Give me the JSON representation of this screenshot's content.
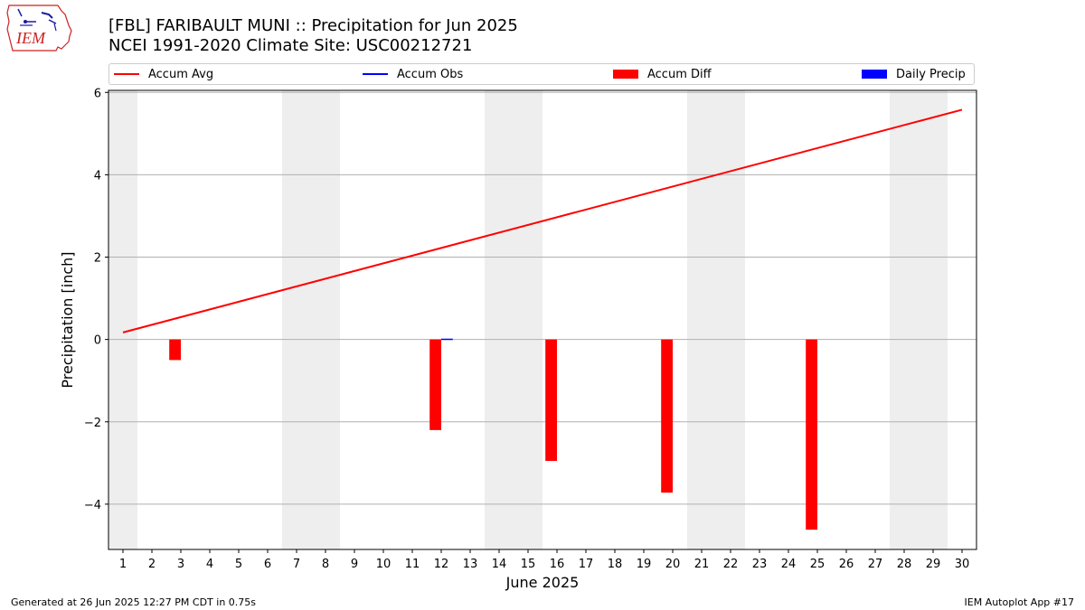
{
  "logo": {
    "text": "IEM"
  },
  "title_line1": "[FBL] FARIBAULT MUNI :: Precipitation for Jun 2025",
  "title_line2": "NCEI 1991-2020 Climate Site: USC00212721",
  "legend": [
    {
      "label": "Accum Avg",
      "kind": "line",
      "color": "#ff0000"
    },
    {
      "label": "Accum Obs",
      "kind": "line",
      "color": "#0000ff"
    },
    {
      "label": "Accum Diff",
      "kind": "box",
      "color": "#ff0000"
    },
    {
      "label": "Daily Precip",
      "kind": "box",
      "color": "#0000ff"
    }
  ],
  "footer_left": "Generated at 26 Jun 2025 12:27 PM CDT in 0.75s",
  "footer_right": "IEM Autoplot App #17",
  "chart_data": {
    "type": "bar",
    "xlabel": "June 2025",
    "ylabel": "Precipitation [inch]",
    "ylim": [
      -5.1,
      6.05
    ],
    "yticks": [
      -4,
      -2,
      0,
      2,
      4,
      6
    ],
    "ytick_labels": [
      "−4",
      "−2",
      "0",
      "2",
      "4",
      "6"
    ],
    "xlim": [
      0.5,
      30.5
    ],
    "days": [
      "1",
      "2",
      "3",
      "4",
      "5",
      "6",
      "7",
      "8",
      "9",
      "10",
      "11",
      "12",
      "13",
      "14",
      "15",
      "16",
      "17",
      "18",
      "19",
      "20",
      "21",
      "22",
      "23",
      "24",
      "25",
      "26",
      "27",
      "28",
      "29",
      "30"
    ],
    "weekend_shading": [
      [
        0.5,
        1.5
      ],
      [
        6.5,
        8.5
      ],
      [
        13.5,
        15.5
      ],
      [
        20.5,
        22.5
      ],
      [
        27.5,
        29.5
      ]
    ],
    "grid": "horizontal",
    "accum_avg": {
      "name": "Accum Avg",
      "start": [
        1,
        0.17
      ],
      "end": [
        30,
        5.58
      ]
    },
    "accum_diff": {
      "name": "Accum Diff",
      "points": [
        [
          3,
          -0.5
        ],
        [
          12,
          -2.2
        ],
        [
          16,
          -2.95
        ],
        [
          20,
          -3.72
        ],
        [
          25,
          -4.62
        ]
      ]
    },
    "daily_precip": {
      "name": "Daily Precip",
      "points": [
        [
          12,
          0.02
        ]
      ]
    }
  }
}
